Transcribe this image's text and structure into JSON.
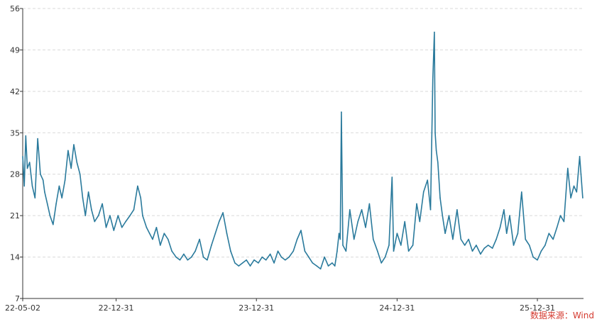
{
  "colors": {
    "series": "#2a7a9c",
    "axis": "#333333",
    "grid": "#d9d9d9",
    "source": "#d43a2f"
  },
  "source_note": "数据来源：Wind",
  "chart_data": {
    "type": "line",
    "title": "",
    "xlabel": "",
    "ylabel": "",
    "ylim": [
      7,
      56
    ],
    "y_ticks": [
      "7",
      "14",
      "21",
      "28",
      "35",
      "42",
      "49",
      "56"
    ],
    "x_ticks": [
      "22-05-02",
      "22-12-31",
      "23-12-31",
      "24-12-31",
      "25-12-31"
    ],
    "x_range": [
      "2022-05-02",
      "2026-04-30"
    ],
    "grid": "horizontal dashed",
    "series": [
      {
        "x": [
          "2022-05-02",
          "2022-05-06",
          "2022-05-10",
          "2022-05-14",
          "2022-05-20",
          "2022-05-27",
          "2022-06-03",
          "2022-06-10",
          "2022-06-17",
          "2022-06-24",
          "2022-06-28",
          "2022-07-05",
          "2022-07-12",
          "2022-07-20",
          "2022-07-28",
          "2022-08-05",
          "2022-08-12",
          "2022-08-20",
          "2022-08-28",
          "2022-09-05",
          "2022-09-12",
          "2022-09-20",
          "2022-09-28",
          "2022-10-05",
          "2022-10-12",
          "2022-10-20",
          "2022-10-28",
          "2022-11-05",
          "2022-11-15",
          "2022-11-25",
          "2022-12-05",
          "2022-12-15",
          "2022-12-25",
          "2023-01-05",
          "2023-01-15",
          "2023-01-25",
          "2023-02-05",
          "2023-02-15",
          "2023-02-25",
          "2023-03-05",
          "2023-03-10",
          "2023-03-20",
          "2023-03-28",
          "2023-04-05",
          "2023-04-15",
          "2023-04-25",
          "2023-05-05",
          "2023-05-15",
          "2023-05-25",
          "2023-06-05",
          "2023-06-15",
          "2023-06-25",
          "2023-07-05",
          "2023-07-15",
          "2023-07-25",
          "2023-08-05",
          "2023-08-15",
          "2023-08-25",
          "2023-09-05",
          "2023-09-15",
          "2023-09-25",
          "2023-10-05",
          "2023-10-15",
          "2023-10-25",
          "2023-11-05",
          "2023-11-15",
          "2023-11-25",
          "2023-12-05",
          "2023-12-15",
          "2023-12-25",
          "2024-01-05",
          "2024-01-15",
          "2024-01-25",
          "2024-02-05",
          "2024-02-15",
          "2024-02-25",
          "2024-03-05",
          "2024-03-15",
          "2024-03-25",
          "2024-04-05",
          "2024-04-15",
          "2024-04-25",
          "2024-05-05",
          "2024-05-15",
          "2024-05-25",
          "2024-06-05",
          "2024-06-15",
          "2024-06-25",
          "2024-07-05",
          "2024-07-15",
          "2024-07-22",
          "2024-07-28",
          "2024-08-02",
          "2024-08-05",
          "2024-08-08",
          "2024-08-12",
          "2024-08-20",
          "2024-08-30",
          "2024-09-10",
          "2024-09-20",
          "2024-09-30",
          "2024-10-10",
          "2024-10-20",
          "2024-10-30",
          "2024-11-10",
          "2024-11-20",
          "2024-11-30",
          "2024-12-10",
          "2024-12-18",
          "2024-12-22",
          "2024-12-31",
          "2025-01-10",
          "2025-01-20",
          "2025-01-30",
          "2025-02-10",
          "2025-02-20",
          "2025-02-28",
          "2025-03-10",
          "2025-03-20",
          "2025-03-28",
          "2025-04-03",
          "2025-04-07",
          "2025-04-09",
          "2025-04-12",
          "2025-04-16",
          "2025-04-22",
          "2025-04-28",
          "2025-05-05",
          "2025-05-15",
          "2025-05-25",
          "2025-06-05",
          "2025-06-15",
          "2025-06-25",
          "2025-07-05",
          "2025-07-15",
          "2025-07-25",
          "2025-08-05",
          "2025-08-15",
          "2025-08-25",
          "2025-09-05",
          "2025-09-15",
          "2025-09-25",
          "2025-10-05",
          "2025-10-12",
          "2025-10-20",
          "2025-10-30",
          "2025-11-10",
          "2025-11-20",
          "2025-11-30",
          "2025-12-10",
          "2025-12-20",
          "2025-12-31",
          "2026-01-10",
          "2026-01-20",
          "2026-01-30",
          "2026-02-10",
          "2026-02-20",
          "2026-03-01",
          "2026-03-10",
          "2026-03-20",
          "2026-03-28",
          "2026-04-05",
          "2026-04-12",
          "2026-04-20",
          "2026-04-28"
        ],
        "values": [
          31,
          26,
          34.5,
          29,
          30,
          26,
          24,
          34,
          28,
          27,
          25,
          23,
          21,
          19.5,
          23,
          26,
          24,
          27,
          32,
          29,
          33,
          30,
          28,
          24,
          21,
          25,
          22,
          20,
          21,
          23,
          19,
          21,
          18.5,
          21,
          19,
          20,
          21,
          22,
          26,
          24,
          21,
          19,
          18,
          17,
          19,
          16,
          18,
          17,
          15,
          14,
          13.5,
          14.5,
          13.5,
          14,
          15,
          17,
          14,
          13.5,
          16,
          18,
          20,
          21.5,
          18,
          15,
          13,
          12.5,
          13,
          13.5,
          12.5,
          13.5,
          13,
          14,
          13.5,
          14.5,
          13,
          15,
          14,
          13.5,
          14,
          15,
          17,
          18.5,
          15,
          14,
          13,
          12.5,
          12,
          14,
          12.5,
          13,
          12.5,
          15,
          18,
          17,
          38.5,
          16,
          15,
          22,
          17,
          20,
          22,
          19,
          23,
          17,
          15,
          13,
          14,
          16,
          27.5,
          15,
          18,
          16,
          20,
          15,
          16,
          23,
          20,
          25,
          27,
          22,
          44,
          52,
          35,
          32,
          30,
          24,
          21,
          18,
          21,
          17,
          22,
          17,
          16,
          17,
          15,
          16,
          14.5,
          15.5,
          16,
          15.5,
          17,
          19,
          22,
          18,
          21,
          16,
          18,
          25,
          17,
          16,
          14,
          13.5,
          15,
          16,
          18,
          17,
          19,
          21,
          20,
          29,
          24,
          26,
          25,
          31,
          24
        ]
      }
    ]
  }
}
